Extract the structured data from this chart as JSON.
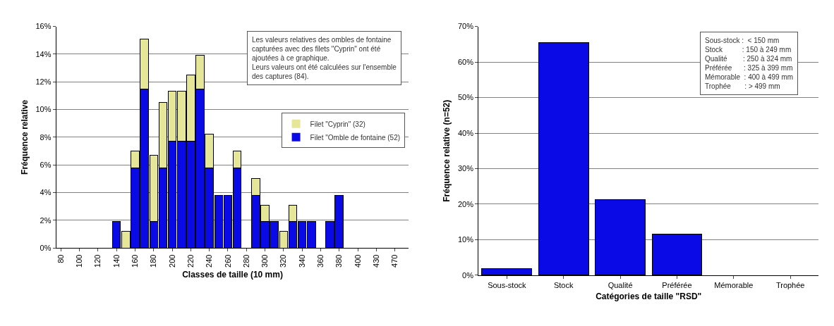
{
  "chart_data": [
    {
      "type": "bar",
      "stacked": true,
      "xlabel": "Classes de taille (10 mm)",
      "ylabel": "Fréquence relative",
      "categories": [
        "80",
        null,
        "100",
        null,
        "120",
        null,
        "140",
        null,
        "160",
        null,
        "180",
        null,
        "200",
        null,
        "220",
        null,
        "240",
        null,
        "260",
        null,
        "280",
        null,
        "300",
        null,
        "320",
        null,
        "340",
        null,
        "360",
        null,
        "380",
        null,
        "400",
        null,
        "430",
        null,
        "470",
        null
      ],
      "series": [
        {
          "name": "Filet \"Omble de fontaine (52)",
          "color": "#0a0ae6",
          "values": [
            0,
            0,
            0,
            0,
            0,
            0,
            1.9,
            0,
            5.8,
            11.5,
            1.9,
            5.8,
            7.7,
            7.7,
            7.7,
            11.5,
            5.8,
            3.8,
            3.8,
            5.8,
            0,
            3.8,
            1.9,
            1.9,
            0,
            1.9,
            1.9,
            1.9,
            0,
            1.9,
            3.8,
            0,
            0,
            0,
            0,
            0,
            0,
            0
          ]
        },
        {
          "name": "Filet \"Cyprin\" (32)",
          "color": "#e6e699",
          "values": [
            0,
            0,
            0,
            0,
            0,
            0,
            0,
            1.2,
            1.2,
            3.6,
            4.8,
            4.7,
            3.6,
            3.6,
            4.8,
            2.4,
            2.4,
            0,
            0,
            1.2,
            0,
            1.2,
            1.2,
            0,
            1.2,
            1.2,
            0,
            0,
            0,
            0,
            0,
            0,
            0,
            0,
            0,
            0,
            0,
            0
          ]
        }
      ],
      "ylim": [
        0,
        16
      ],
      "yticks": [
        {
          "value": 0,
          "label": "0%"
        },
        {
          "value": 2,
          "label": "2%"
        },
        {
          "value": 4,
          "label": "4%"
        },
        {
          "value": 6,
          "label": "6%"
        },
        {
          "value": 8,
          "label": "8%"
        },
        {
          "value": 10,
          "label": "10%"
        },
        {
          "value": 12,
          "label": "12%"
        },
        {
          "value": 14,
          "label": "14%"
        },
        {
          "value": 16,
          "label": "16%"
        }
      ],
      "grid": "y",
      "legend": "top right",
      "annotations": [
        "Les valeurs relatives des ombles de fontaine\ncapturées avec des filets \"Cyprin\" ont été\najoutées à ce graphique.\nLeurs valeurs ont été calculées sur l'ensemble\ndes captures (84)."
      ]
    },
    {
      "type": "bar",
      "xlabel": "Catégories de taille \"RSD\"",
      "ylabel": "Fréquence relative (n=52)",
      "categories": [
        "Sous-stock",
        "Stock",
        "Qualité",
        "Préférée",
        "Mémorable",
        "Trophée"
      ],
      "values": [
        1.9,
        65.4,
        21.2,
        11.5,
        0,
        0
      ],
      "color": "#0a0ae6",
      "ylim": [
        0,
        70
      ],
      "yticks": [
        {
          "value": 0,
          "label": "0%"
        },
        {
          "value": 10,
          "label": "10%"
        },
        {
          "value": 20,
          "label": "20%"
        },
        {
          "value": 30,
          "label": "30%"
        },
        {
          "value": 40,
          "label": "40%"
        },
        {
          "value": 50,
          "label": "50%"
        },
        {
          "value": 60,
          "label": "60%"
        },
        {
          "value": 70,
          "label": "70%"
        }
      ],
      "grid": "y",
      "annotations": [
        "Sous-stock :  < 150 mm\nStock          : 150 à 249 mm\nQualité        : 250 à 324 mm\nPréférée      : 325 à 399 mm\nMémorable  : 400 à 499 mm\nTrophée       : > 499 mm"
      ]
    }
  ]
}
